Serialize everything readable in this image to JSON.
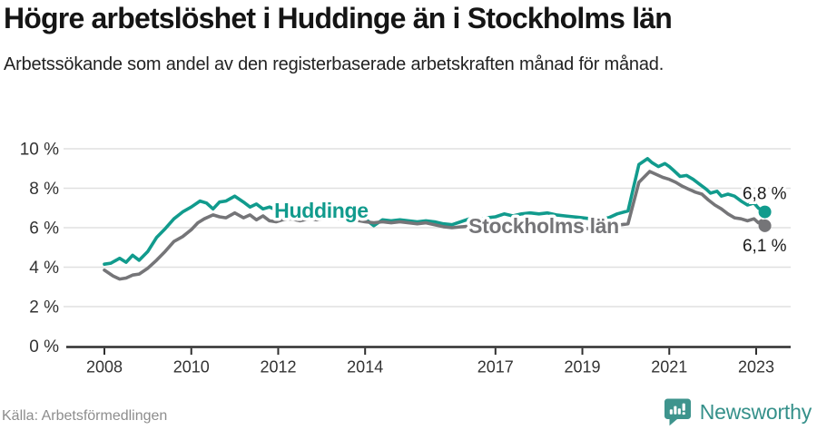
{
  "header": {
    "title": "Högre arbetslöshet i Huddinge än i Stockholms län",
    "subtitle": "Arbetssökande som andel av den registerbaserade arbetskraften månad för månad."
  },
  "footer": {
    "source": "Källa: Arbetsförmedlingen",
    "brand": "Newsworthy"
  },
  "colors": {
    "huddinge": "#119b8d",
    "stockholm": "#757578",
    "grid": "#e0e0e0",
    "axis": "#2f2f2f",
    "tick_text": "#333333",
    "value_text": "#1a1a1a",
    "muted_text": "#8d8d8d",
    "brand_teal": "#3e948d"
  },
  "chart_data": {
    "type": "line",
    "title": "Högre arbetslöshet i Huddinge än i Stockholms län",
    "xlabel": "",
    "ylabel": "Arbetssökande som andel av den registerbaserade arbetskraften",
    "ylim": [
      0,
      10
    ],
    "xlim": [
      2007.1,
      2023.8
    ],
    "grid": "horizontal",
    "legend_position": "inline-labels",
    "yticks": [
      {
        "value": 0,
        "label": "0 %"
      },
      {
        "value": 2,
        "label": "2 %"
      },
      {
        "value": 4,
        "label": "4 %"
      },
      {
        "value": 6,
        "label": "6 %"
      },
      {
        "value": 8,
        "label": "8 %"
      },
      {
        "value": 10,
        "label": "10 %"
      }
    ],
    "xticks": [
      {
        "value": 2008,
        "label": "2008"
      },
      {
        "value": 2010,
        "label": "2010"
      },
      {
        "value": 2012,
        "label": "2012"
      },
      {
        "value": 2014,
        "label": "2014"
      },
      {
        "value": 2017,
        "label": "2017"
      },
      {
        "value": 2019,
        "label": "2019"
      },
      {
        "value": 2021,
        "label": "2021"
      },
      {
        "value": 2023,
        "label": "2023"
      }
    ],
    "series": [
      {
        "name": "Huddinge",
        "slug": "huddinge",
        "color": "#119b8d",
        "label_at": [
          2011.91,
          6.51
        ],
        "end_value": 6.8,
        "end_label": "6,8 %",
        "points": [
          [
            2008.0,
            4.15
          ],
          [
            2008.15,
            4.2
          ],
          [
            2008.35,
            4.45
          ],
          [
            2008.5,
            4.25
          ],
          [
            2008.65,
            4.6
          ],
          [
            2008.8,
            4.35
          ],
          [
            2009.0,
            4.8
          ],
          [
            2009.2,
            5.5
          ],
          [
            2009.4,
            5.95
          ],
          [
            2009.6,
            6.45
          ],
          [
            2009.8,
            6.8
          ],
          [
            2010.0,
            7.05
          ],
          [
            2010.2,
            7.35
          ],
          [
            2010.35,
            7.25
          ],
          [
            2010.5,
            6.95
          ],
          [
            2010.65,
            7.3
          ],
          [
            2010.8,
            7.35
          ],
          [
            2011.0,
            7.6
          ],
          [
            2011.2,
            7.3
          ],
          [
            2011.35,
            7.05
          ],
          [
            2011.5,
            7.2
          ],
          [
            2011.65,
            6.95
          ],
          [
            2011.8,
            7.05
          ],
          [
            2011.95,
            6.9
          ],
          [
            2012.1,
            7.0
          ],
          [
            2012.3,
            6.95
          ],
          [
            2012.5,
            6.9
          ],
          [
            2012.75,
            6.85
          ],
          [
            2013.0,
            6.8
          ],
          [
            2013.25,
            6.75
          ],
          [
            2013.5,
            6.7
          ],
          [
            2013.75,
            6.6
          ],
          [
            2014.0,
            6.45
          ],
          [
            2014.2,
            6.1
          ],
          [
            2014.4,
            6.4
          ],
          [
            2014.6,
            6.35
          ],
          [
            2014.8,
            6.4
          ],
          [
            2015.0,
            6.35
          ],
          [
            2015.2,
            6.3
          ],
          [
            2015.4,
            6.35
          ],
          [
            2015.6,
            6.3
          ],
          [
            2015.8,
            6.2
          ],
          [
            2016.0,
            6.15
          ],
          [
            2016.2,
            6.3
          ],
          [
            2016.4,
            6.45
          ],
          [
            2016.6,
            6.4
          ],
          [
            2016.8,
            6.5
          ],
          [
            2017.0,
            6.55
          ],
          [
            2017.2,
            6.7
          ],
          [
            2017.4,
            6.6
          ],
          [
            2017.6,
            6.7
          ],
          [
            2017.8,
            6.75
          ],
          [
            2018.0,
            6.7
          ],
          [
            2018.2,
            6.75
          ],
          [
            2018.4,
            6.65
          ],
          [
            2018.6,
            6.6
          ],
          [
            2018.8,
            6.55
          ],
          [
            2019.0,
            6.5
          ],
          [
            2019.2,
            6.45
          ],
          [
            2019.4,
            6.45
          ],
          [
            2019.6,
            6.5
          ],
          [
            2019.8,
            6.7
          ],
          [
            2020.05,
            6.85
          ],
          [
            2020.3,
            9.2
          ],
          [
            2020.5,
            9.5
          ],
          [
            2020.6,
            9.3
          ],
          [
            2020.75,
            9.1
          ],
          [
            2020.9,
            9.25
          ],
          [
            2021.0,
            9.1
          ],
          [
            2021.1,
            8.9
          ],
          [
            2021.25,
            8.6
          ],
          [
            2021.4,
            8.65
          ],
          [
            2021.55,
            8.45
          ],
          [
            2021.7,
            8.2
          ],
          [
            2021.85,
            7.95
          ],
          [
            2021.95,
            7.75
          ],
          [
            2022.1,
            7.85
          ],
          [
            2022.2,
            7.6
          ],
          [
            2022.35,
            7.7
          ],
          [
            2022.5,
            7.6
          ],
          [
            2022.65,
            7.35
          ],
          [
            2022.8,
            7.15
          ],
          [
            2022.95,
            7.25
          ],
          [
            2023.05,
            7.0
          ],
          [
            2023.12,
            6.9
          ],
          [
            2023.2,
            6.8
          ]
        ]
      },
      {
        "name": "Stockholms län",
        "slug": "stockholms-lan",
        "color": "#757578",
        "label_at": [
          2016.38,
          5.72
        ],
        "end_value": 6.1,
        "end_label": "6,1 %",
        "points": [
          [
            2008.0,
            3.85
          ],
          [
            2008.2,
            3.55
          ],
          [
            2008.35,
            3.4
          ],
          [
            2008.5,
            3.45
          ],
          [
            2008.65,
            3.6
          ],
          [
            2008.8,
            3.65
          ],
          [
            2009.0,
            3.95
          ],
          [
            2009.2,
            4.35
          ],
          [
            2009.4,
            4.8
          ],
          [
            2009.6,
            5.3
          ],
          [
            2009.8,
            5.55
          ],
          [
            2010.0,
            5.9
          ],
          [
            2010.15,
            6.25
          ],
          [
            2010.3,
            6.45
          ],
          [
            2010.5,
            6.65
          ],
          [
            2010.65,
            6.55
          ],
          [
            2010.8,
            6.5
          ],
          [
            2011.0,
            6.75
          ],
          [
            2011.2,
            6.5
          ],
          [
            2011.35,
            6.65
          ],
          [
            2011.5,
            6.4
          ],
          [
            2011.65,
            6.6
          ],
          [
            2011.8,
            6.35
          ],
          [
            2011.95,
            6.3
          ],
          [
            2012.1,
            6.4
          ],
          [
            2012.3,
            6.45
          ],
          [
            2012.5,
            6.35
          ],
          [
            2012.7,
            6.45
          ],
          [
            2012.9,
            6.4
          ],
          [
            2013.1,
            6.5
          ],
          [
            2013.3,
            6.45
          ],
          [
            2013.5,
            6.45
          ],
          [
            2013.75,
            6.4
          ],
          [
            2014.0,
            6.3
          ],
          [
            2014.2,
            6.25
          ],
          [
            2014.4,
            6.3
          ],
          [
            2014.6,
            6.25
          ],
          [
            2014.8,
            6.3
          ],
          [
            2015.0,
            6.25
          ],
          [
            2015.2,
            6.2
          ],
          [
            2015.4,
            6.25
          ],
          [
            2015.6,
            6.15
          ],
          [
            2015.8,
            6.05
          ],
          [
            2016.0,
            6.0
          ],
          [
            2016.25,
            6.05
          ],
          [
            2016.5,
            6.1
          ],
          [
            2016.75,
            6.05
          ],
          [
            2017.0,
            6.1
          ],
          [
            2017.25,
            6.15
          ],
          [
            2017.5,
            6.15
          ],
          [
            2017.75,
            6.1
          ],
          [
            2018.0,
            6.1
          ],
          [
            2018.25,
            6.05
          ],
          [
            2018.5,
            6.0
          ],
          [
            2018.75,
            5.95
          ],
          [
            2019.0,
            5.95
          ],
          [
            2019.25,
            5.95
          ],
          [
            2019.5,
            6.0
          ],
          [
            2019.7,
            6.1
          ],
          [
            2019.9,
            6.15
          ],
          [
            2020.05,
            6.2
          ],
          [
            2020.3,
            8.3
          ],
          [
            2020.55,
            8.85
          ],
          [
            2020.7,
            8.7
          ],
          [
            2020.85,
            8.55
          ],
          [
            2021.0,
            8.45
          ],
          [
            2021.15,
            8.3
          ],
          [
            2021.3,
            8.1
          ],
          [
            2021.45,
            7.95
          ],
          [
            2021.6,
            7.8
          ],
          [
            2021.75,
            7.7
          ],
          [
            2021.9,
            7.4
          ],
          [
            2022.05,
            7.15
          ],
          [
            2022.2,
            6.95
          ],
          [
            2022.35,
            6.7
          ],
          [
            2022.5,
            6.5
          ],
          [
            2022.65,
            6.45
          ],
          [
            2022.8,
            6.35
          ],
          [
            2022.95,
            6.45
          ],
          [
            2023.05,
            6.25
          ],
          [
            2023.12,
            6.35
          ],
          [
            2023.2,
            6.1
          ]
        ]
      }
    ]
  }
}
